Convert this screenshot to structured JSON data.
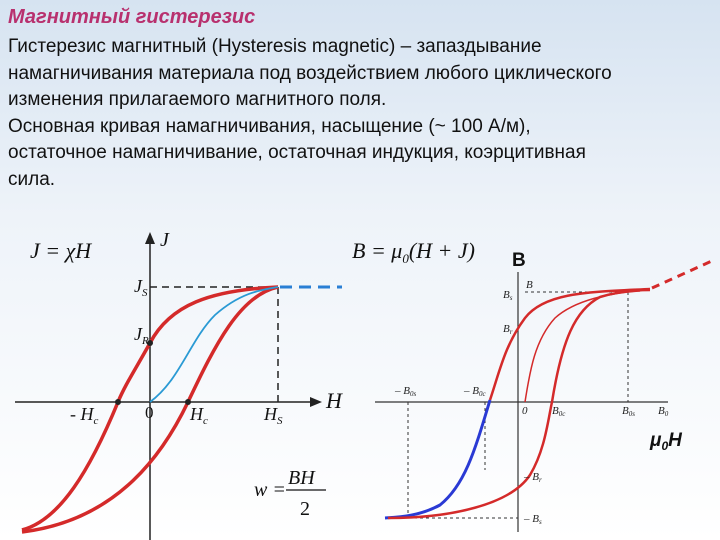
{
  "header": {
    "title": "Магнитный гистерезис"
  },
  "text_lines": [
    "Гистерезис магнитный (Hysteresis magnetic) – запаздывание",
    "намагничивания материала под воздействием любого циклического",
    "изменения прилагаемого магнитного поля.",
    "Основная кривая намагничивания, насыщение (~ 100 А/м),",
    "остаточное намагничивание, остаточная индукция, коэрцитивная",
    "сила."
  ],
  "left_diagram": {
    "formula": {
      "lhs": "J = χH"
    },
    "axis_y": "J",
    "axis_x": "H",
    "js": {
      "main": "J",
      "sub": "S"
    },
    "jr": {
      "main": "J",
      "sub": "R"
    },
    "neg_hc": {
      "main": "- H",
      "sub": "c"
    },
    "origin": "0",
    "hc": {
      "main": "H",
      "sub": "c"
    },
    "hs": {
      "main": "H",
      "sub": "S"
    },
    "energy": {
      "lhs": "w =",
      "numerator": "BH",
      "denominator": "2"
    }
  },
  "right_diagram": {
    "formula": {
      "main": "B = μ",
      "sub": "0",
      "rest": "(H + J)"
    },
    "axis_y": "B",
    "axis_x": {
      "main": "μ",
      "sub": "0",
      "rest": "H"
    },
    "bs": {
      "main": "B",
      "sub": "s"
    },
    "br": {
      "main": "B",
      "sub": "r"
    },
    "b_top": "B",
    "neg_b0s": {
      "main": "– B",
      "sub": "0s"
    },
    "neg_b0c": {
      "main": "– B",
      "sub": "0c"
    },
    "origin": "0",
    "b0c": {
      "main": "B",
      "sub": "0c"
    },
    "b0s": {
      "main": "B",
      "sub": "0s"
    },
    "b0": {
      "main": "B",
      "sub": "0"
    },
    "neg_br": {
      "main": "– B",
      "sub": "r"
    },
    "neg_bs": {
      "main": "– B",
      "sub": "s"
    }
  }
}
